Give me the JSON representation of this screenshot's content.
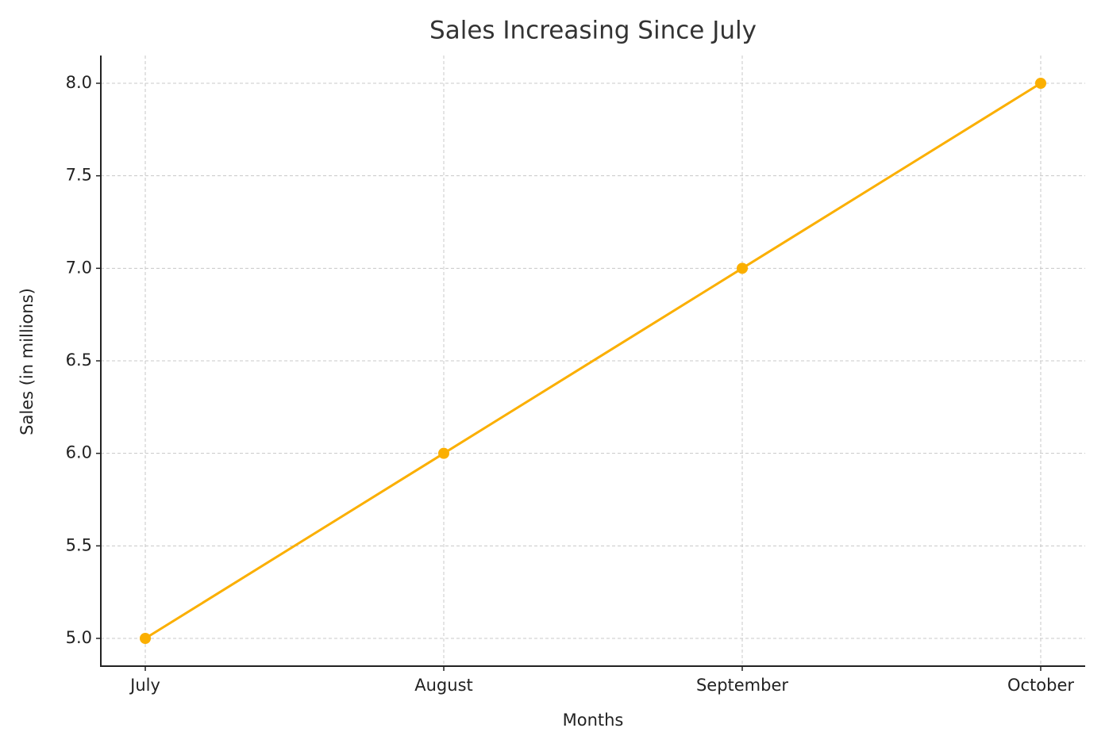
{
  "chart_data": {
    "type": "line",
    "title": "Sales Increasing Since July",
    "x_label": "Months",
    "y_label": "Sales (in millions)",
    "categories": [
      "July",
      "August",
      "September",
      "October"
    ],
    "series": [
      {
        "name": "Sales",
        "color": "#fbaf00",
        "values": [
          5,
          6,
          7,
          8
        ]
      }
    ],
    "ylim": [
      4.85,
      8.15
    ],
    "yticks": [
      {
        "value": 5,
        "label": "5.0"
      },
      {
        "value": 5.5,
        "label": "5.5"
      },
      {
        "value": 6,
        "label": "6.0"
      },
      {
        "value": 6.5,
        "label": "6.5"
      },
      {
        "value": 7,
        "label": "7.0"
      },
      {
        "value": 7.5,
        "label": "7.5"
      },
      {
        "value": 8,
        "label": "8.0"
      }
    ],
    "grid": true
  }
}
